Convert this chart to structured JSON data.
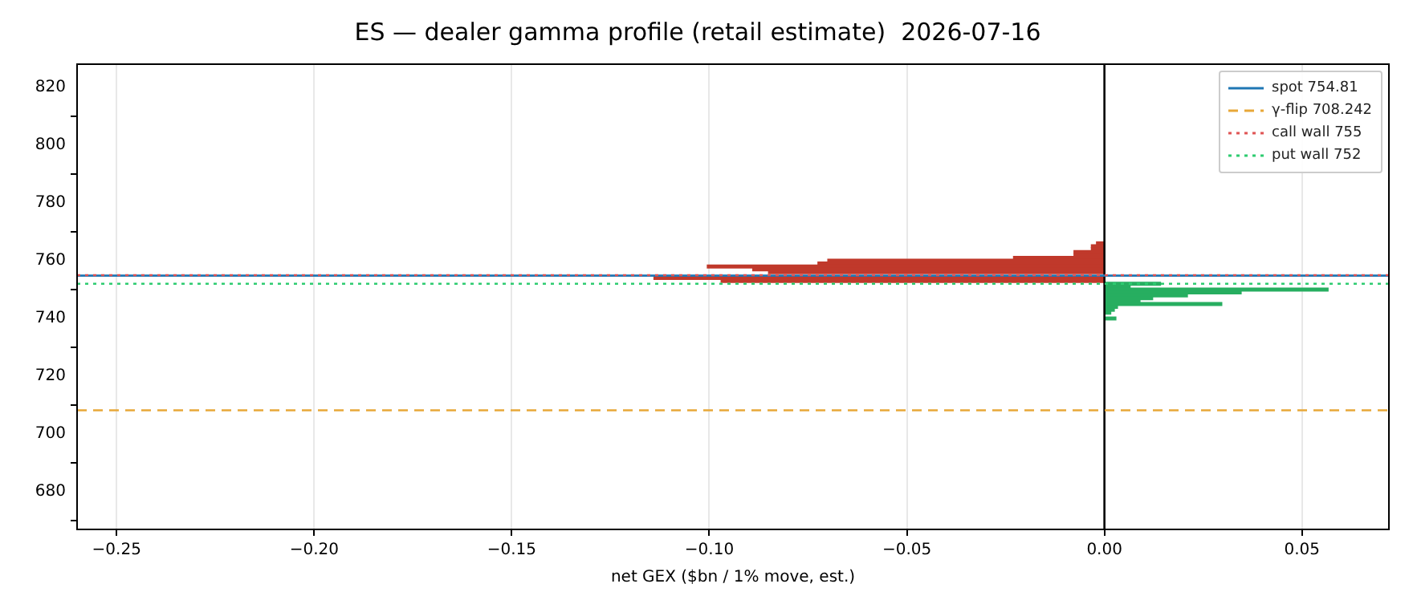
{
  "chart_data": {
    "type": "bar",
    "orientation": "horizontal",
    "title": "ES — dealer gamma profile (retail estimate)  2026-07-16",
    "xlabel": "net GEX ($bn / 1% move, est.)",
    "x": [
      766,
      765,
      764,
      763,
      762,
      761,
      760,
      759,
      758,
      757,
      756,
      755,
      754,
      753,
      752,
      751,
      750,
      749,
      748,
      747,
      746,
      745,
      744,
      743,
      742,
      741,
      740
    ],
    "series": [
      {
        "color": "#c0392b",
        "values": [
          -0.002,
          -0.0033,
          -0.0033,
          -0.0077,
          -0.0077,
          -0.023,
          -0.07,
          -0.0725,
          -0.1005,
          -0.089,
          -0.085,
          null,
          -0.114,
          -0.097,
          null,
          null,
          null,
          null,
          null,
          null,
          null,
          null,
          null,
          null,
          null,
          null,
          null
        ]
      },
      {
        "color": "#27ae60",
        "values": [
          null,
          null,
          null,
          null,
          null,
          null,
          null,
          null,
          null,
          null,
          null,
          null,
          null,
          null,
          0.0142,
          0.0065,
          0.0566,
          0.0346,
          0.021,
          0.0122,
          0.009,
          0.0297,
          0.0033,
          0.0025,
          0.0016,
          null,
          0.0029
        ]
      }
    ],
    "xlim": [
      -0.26,
      0.072
    ],
    "xticks": [
      {
        "value": -0.25,
        "label": "−0.25"
      },
      {
        "value": -0.2,
        "label": "−0.20"
      },
      {
        "value": -0.15,
        "label": "−0.15"
      },
      {
        "value": -0.1,
        "label": "−0.10"
      },
      {
        "value": -0.05,
        "label": "−0.05"
      },
      {
        "value": 0,
        "label": "0.00"
      },
      {
        "value": 0.05,
        "label": "0.05"
      }
    ],
    "ylim": [
      667,
      828
    ],
    "yticks": [
      680,
      700,
      720,
      740,
      760,
      780,
      800,
      820
    ],
    "ref_lines": [
      {
        "axis": "x",
        "value": 0,
        "color": "#000000",
        "line_style": "solid"
      },
      {
        "axis": "y",
        "value": 754.81,
        "label": "spot 754.81",
        "color": "#1f77b4",
        "line_style": "solid"
      },
      {
        "axis": "y",
        "value": 708.242,
        "label": "γ-flip 708.242",
        "color": "#e8a838",
        "line_style": "dashed"
      },
      {
        "axis": "y",
        "value": 755,
        "label": "call wall 755",
        "color": "#e05555",
        "line_style": "dotted"
      },
      {
        "axis": "y",
        "value": 752,
        "label": "put wall 752",
        "color": "#2ecc71",
        "line_style": "dotted"
      }
    ],
    "grid": "x",
    "legend": "top right"
  }
}
